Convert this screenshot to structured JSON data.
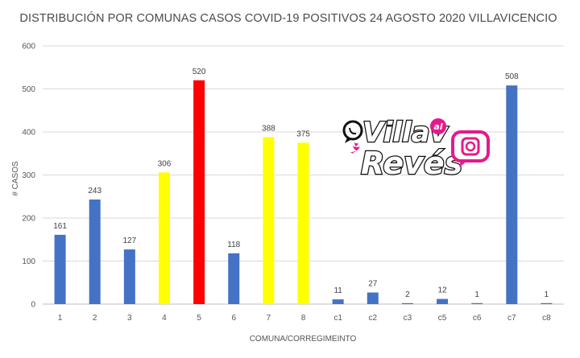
{
  "chart_data": {
    "type": "bar",
    "title": "DISTRIBUCIÓN POR COMUNAS CASOS COVID-19 POSITIVOS 24 AGOSTO 2020 VILLAVICENCIO",
    "xlabel": "COMUNA/CORREGIMEINTO",
    "ylabel": "# CASOS",
    "ylim": [
      0,
      600
    ],
    "yticks": [
      0,
      100,
      200,
      300,
      400,
      500,
      600
    ],
    "grid": true,
    "categories": [
      "1",
      "2",
      "3",
      "4",
      "5",
      "6",
      "7",
      "8",
      "c1",
      "c2",
      "c3",
      "c5",
      "c6",
      "c7",
      "c8"
    ],
    "values": [
      161,
      243,
      127,
      306,
      520,
      118,
      388,
      375,
      11,
      27,
      2,
      12,
      1,
      508,
      1
    ],
    "colors": [
      "#4472C4",
      "#4472C4",
      "#4472C4",
      "#FFFF00",
      "#FF0000",
      "#4472C4",
      "#FFFF00",
      "#FFFF00",
      "#4472C4",
      "#4472C4",
      "#4472C4",
      "#4472C4",
      "#4472C4",
      "#4472C4",
      "#4472C4"
    ]
  },
  "logo": {
    "text_line1": "Villav",
    "text_line2": "Revés",
    "badge": "al",
    "brand_pink": "#E6198C",
    "brand_dark": "#111111"
  }
}
